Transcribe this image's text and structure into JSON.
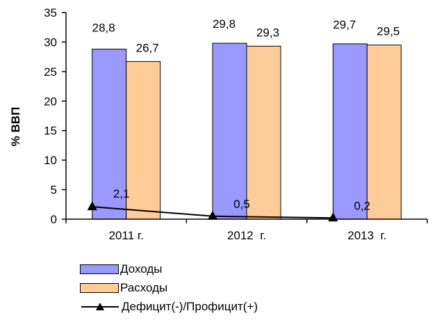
{
  "chart_data": {
    "type": "bar",
    "categories": [
      "2011 г.",
      "2012  г.",
      "2013  г."
    ],
    "series": [
      {
        "name": "Доходы",
        "kind": "bar",
        "values": [
          28.8,
          29.8,
          29.7
        ],
        "labels": [
          "28,8",
          "29,8",
          "29,7"
        ],
        "color": "#9999ff"
      },
      {
        "name": "Расходы",
        "kind": "bar",
        "values": [
          26.7,
          29.3,
          29.5
        ],
        "labels": [
          "26,7",
          "29,3",
          "29,5"
        ],
        "color": "#ffcc99"
      },
      {
        "name": "Дефицит(-)/Профицит(+)",
        "kind": "line",
        "values": [
          2.1,
          0.5,
          0.2
        ],
        "labels": [
          "2,1",
          "0,5",
          "0,2"
        ],
        "color": "#000000"
      }
    ],
    "ylabel": "% ВВП",
    "ylim": [
      0,
      35
    ],
    "yticks": [
      0,
      5,
      10,
      15,
      20,
      25,
      30,
      35
    ],
    "grid": false,
    "legend_position": "bottom-left"
  }
}
